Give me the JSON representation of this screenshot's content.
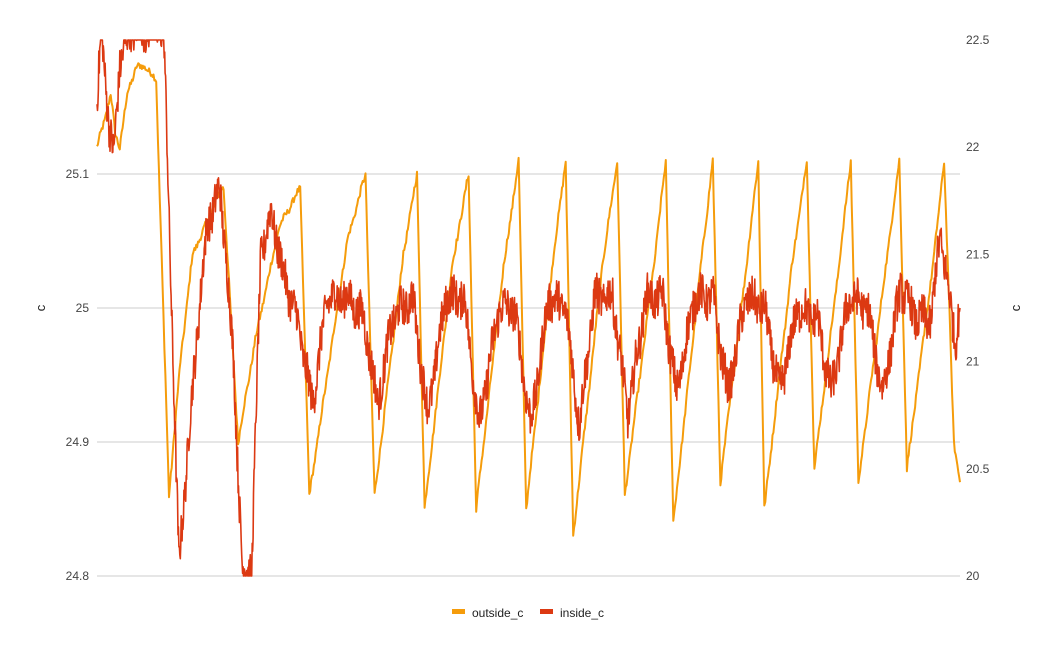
{
  "chart_data": {
    "type": "line",
    "title": "",
    "y_left": {
      "label": "c",
      "range": [
        24.8,
        25.2
      ],
      "ticks": [
        "24.8",
        "24.9",
        "25",
        "25.1"
      ]
    },
    "y_right": {
      "label": "c",
      "range": [
        20,
        22.5
      ],
      "ticks": [
        "20",
        "20.5",
        "21",
        "21.5",
        "22",
        "22.5"
      ]
    },
    "gridlines": true,
    "legend_position": "bottom",
    "series": [
      {
        "name": "outside_c",
        "axis": "left",
        "color": "#f59c0b",
        "keypoints": [
          [
            0,
            25.12
          ],
          [
            0.5,
            25.14
          ],
          [
            0.9,
            25.16
          ],
          [
            1.2,
            25.13
          ],
          [
            1.5,
            25.12
          ],
          [
            2.0,
            25.16
          ],
          [
            2.6,
            25.18
          ],
          [
            3.2,
            25.18
          ],
          [
            3.9,
            25.17
          ],
          [
            4.75,
            24.86
          ],
          [
            5.5,
            24.96
          ],
          [
            6.3,
            25.04
          ],
          [
            7.5,
            25.07
          ],
          [
            8.2,
            25.09
          ],
          [
            8.35,
            25.09
          ],
          [
            9.3,
            24.9
          ],
          [
            10.5,
            24.98
          ],
          [
            12.0,
            25.06
          ],
          [
            13.4,
            25.09
          ],
          [
            14.0,
            24.86
          ],
          [
            16.5,
            25.05
          ],
          [
            17.7,
            25.1
          ],
          [
            18.3,
            24.86
          ],
          [
            20.2,
            25.04
          ],
          [
            21.1,
            25.1
          ],
          [
            21.6,
            24.85
          ],
          [
            23.4,
            25.03
          ],
          [
            24.5,
            25.1
          ],
          [
            25.0,
            24.85
          ],
          [
            26.8,
            25.03
          ],
          [
            27.8,
            25.11
          ],
          [
            28.3,
            24.85
          ],
          [
            30.0,
            25.03
          ],
          [
            30.9,
            25.11
          ],
          [
            31.4,
            24.83
          ],
          [
            33.3,
            25.03
          ],
          [
            34.3,
            25.11
          ],
          [
            34.8,
            24.86
          ],
          [
            36.7,
            25.03
          ],
          [
            37.5,
            25.11
          ],
          [
            38.0,
            24.84
          ],
          [
            39.8,
            25.03
          ],
          [
            40.6,
            25.11
          ],
          [
            41.1,
            24.87
          ],
          [
            42.8,
            25.03
          ],
          [
            43.6,
            25.11
          ],
          [
            44.0,
            24.85
          ],
          [
            45.8,
            25.03
          ],
          [
            46.8,
            25.11
          ],
          [
            47.3,
            24.88
          ],
          [
            48.9,
            25.03
          ],
          [
            49.7,
            25.11
          ],
          [
            50.2,
            24.87
          ],
          [
            52.0,
            25.03
          ],
          [
            52.9,
            25.11
          ],
          [
            53.4,
            24.88
          ],
          [
            55.2,
            25.04
          ],
          [
            55.85,
            25.11
          ],
          [
            56.5,
            24.9
          ],
          [
            56.9,
            24.87
          ]
        ]
      },
      {
        "name": "inside_c",
        "axis": "right",
        "color": "#dc3912",
        "keypoints": [
          [
            0,
            22.2
          ],
          [
            0.3,
            22.55
          ],
          [
            0.8,
            22.1
          ],
          [
            1.1,
            21.95
          ],
          [
            1.5,
            22.4
          ],
          [
            2.0,
            22.5
          ],
          [
            2.1,
            22.55
          ],
          [
            4.4,
            22.55
          ],
          [
            5.4,
            20.05
          ],
          [
            6.0,
            20.6
          ],
          [
            6.8,
            21.3
          ],
          [
            7.3,
            21.65
          ],
          [
            8.1,
            21.8
          ],
          [
            8.5,
            21.5
          ],
          [
            9.0,
            21.0
          ],
          [
            9.6,
            20.0
          ],
          [
            10.2,
            20.05
          ],
          [
            10.8,
            21.5
          ],
          [
            11.5,
            21.7
          ],
          [
            12.3,
            21.4
          ],
          [
            13.2,
            21.2
          ],
          [
            14.2,
            20.8
          ],
          [
            15.2,
            21.3
          ],
          [
            16.5,
            21.3
          ],
          [
            17.6,
            21.2
          ],
          [
            18.5,
            20.8
          ],
          [
            19.5,
            21.2
          ],
          [
            20.8,
            21.3
          ],
          [
            21.8,
            20.75
          ],
          [
            23.0,
            21.3
          ],
          [
            24.2,
            21.3
          ],
          [
            25.2,
            20.7
          ],
          [
            26.5,
            21.25
          ],
          [
            27.5,
            21.25
          ],
          [
            28.6,
            20.7
          ],
          [
            29.8,
            21.3
          ],
          [
            30.9,
            21.25
          ],
          [
            31.8,
            20.7
          ],
          [
            32.8,
            21.3
          ],
          [
            34.0,
            21.3
          ],
          [
            35.0,
            20.75
          ],
          [
            36.2,
            21.3
          ],
          [
            37.3,
            21.3
          ],
          [
            38.2,
            20.85
          ],
          [
            39.4,
            21.3
          ],
          [
            40.6,
            21.3
          ],
          [
            41.6,
            20.85
          ],
          [
            42.8,
            21.3
          ],
          [
            44.0,
            21.25
          ],
          [
            45.0,
            20.85
          ],
          [
            46.2,
            21.25
          ],
          [
            47.5,
            21.2
          ],
          [
            48.4,
            20.85
          ],
          [
            49.6,
            21.3
          ],
          [
            50.8,
            21.25
          ],
          [
            51.8,
            20.85
          ],
          [
            53.0,
            21.35
          ],
          [
            54.0,
            21.2
          ],
          [
            55.0,
            21.2
          ],
          [
            55.6,
            21.6
          ],
          [
            56.2,
            21.3
          ],
          [
            56.6,
            21.1
          ],
          [
            56.9,
            21.25
          ]
        ]
      }
    ]
  }
}
